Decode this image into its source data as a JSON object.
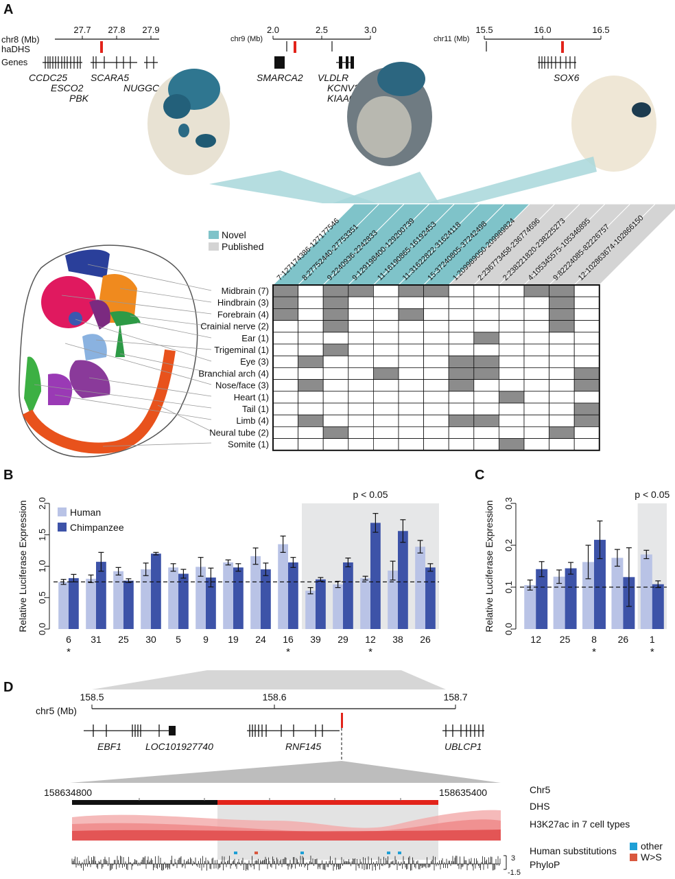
{
  "panel_labels": {
    "a": "A",
    "b": "B",
    "c": "C",
    "d": "D"
  },
  "panel_a": {
    "loci": [
      {
        "chrom": "chr8 (Mb)",
        "ticks": [
          "27.7",
          "27.8",
          "27.9"
        ],
        "track_labels": [
          "haDHS",
          "Genes"
        ],
        "genes": [
          "CCDC25",
          "ESCO2",
          "PBK",
          "SCARA5",
          "NUGGC"
        ]
      },
      {
        "chrom": "chr9 (Mb)",
        "ticks": [
          "2.0",
          "2.5",
          "3.0"
        ],
        "genes": [
          "SMARCA2",
          "VLDLR",
          "KCNV2",
          "KIAA0020"
        ]
      },
      {
        "chrom": "chr11 (Mb)",
        "ticks": [
          "15.5",
          "16.0",
          "16.5"
        ],
        "genes": [
          "SOX6"
        ]
      }
    ],
    "legend": [
      {
        "label": "Novel",
        "color": "#7fc3c9"
      },
      {
        "label": "Published",
        "color": "#d4d4d4"
      }
    ],
    "columns": [
      {
        "label": "7:127174386-127177546",
        "type": "novel"
      },
      {
        "label": "8:27752440-27753351",
        "type": "novel"
      },
      {
        "label": "9:2240936-2242833",
        "type": "novel"
      },
      {
        "label": "9:129198400-129200739",
        "type": "novel"
      },
      {
        "label": "11:16190865-16192453",
        "type": "novel"
      },
      {
        "label": "11:31622822-31624118",
        "type": "novel"
      },
      {
        "label": "15:37240805-37242498",
        "type": "novel"
      },
      {
        "label": "1:209989050-209989824",
        "type": "published"
      },
      {
        "label": "2:236773458-236774696",
        "type": "published"
      },
      {
        "label": "2:238221820-238225273",
        "type": "published"
      },
      {
        "label": "4:105345575-105346895",
        "type": "published"
      },
      {
        "label": "9:82224085-82226757",
        "type": "published"
      },
      {
        "label": "12:102863674-102866150",
        "type": "published"
      }
    ],
    "rows": [
      {
        "label": "Midbrain (7)",
        "cells": [
          1,
          0,
          1,
          1,
          0,
          1,
          1,
          0,
          0,
          0,
          1,
          1,
          0
        ]
      },
      {
        "label": "Hindbrain (3)",
        "cells": [
          1,
          0,
          1,
          0,
          0,
          0,
          0,
          0,
          0,
          0,
          0,
          1,
          0
        ]
      },
      {
        "label": "Forebrain (4)",
        "cells": [
          1,
          0,
          1,
          0,
          0,
          1,
          0,
          0,
          0,
          0,
          0,
          1,
          0
        ]
      },
      {
        "label": "Crainial nerve (2)",
        "cells": [
          0,
          0,
          1,
          0,
          0,
          0,
          0,
          0,
          0,
          0,
          0,
          1,
          0
        ]
      },
      {
        "label": "Ear (1)",
        "cells": [
          0,
          0,
          0,
          0,
          0,
          0,
          0,
          0,
          1,
          0,
          0,
          0,
          0
        ]
      },
      {
        "label": "Trigeminal (1)",
        "cells": [
          0,
          0,
          1,
          0,
          0,
          0,
          0,
          0,
          0,
          0,
          0,
          0,
          0
        ]
      },
      {
        "label": "Eye (3)",
        "cells": [
          0,
          1,
          0,
          0,
          0,
          0,
          0,
          1,
          1,
          0,
          0,
          0,
          0
        ]
      },
      {
        "label": "Branchial arch (4)",
        "cells": [
          0,
          0,
          0,
          0,
          1,
          0,
          0,
          1,
          1,
          0,
          0,
          0,
          1
        ]
      },
      {
        "label": "Nose/face (3)",
        "cells": [
          0,
          1,
          0,
          0,
          0,
          0,
          0,
          1,
          0,
          0,
          0,
          0,
          1
        ]
      },
      {
        "label": "Heart (1)",
        "cells": [
          0,
          0,
          0,
          0,
          0,
          0,
          0,
          0,
          0,
          1,
          0,
          0,
          0
        ]
      },
      {
        "label": "Tail (1)",
        "cells": [
          0,
          0,
          0,
          0,
          0,
          0,
          0,
          0,
          0,
          0,
          0,
          0,
          1
        ]
      },
      {
        "label": "Limb (4)",
        "cells": [
          0,
          1,
          0,
          0,
          0,
          0,
          0,
          1,
          1,
          0,
          0,
          0,
          1
        ]
      },
      {
        "label": "Neural tube (2)",
        "cells": [
          0,
          0,
          1,
          0,
          0,
          0,
          0,
          0,
          0,
          0,
          0,
          1,
          0
        ]
      },
      {
        "label": "Somite (1)",
        "cells": [
          0,
          0,
          0,
          0,
          0,
          0,
          0,
          0,
          0,
          1,
          0,
          0,
          0
        ]
      }
    ]
  },
  "chart_data": [
    {
      "type": "bar",
      "panel": "B",
      "ylabel": "Relative Luciferase Expression",
      "categories": [
        "6",
        "31",
        "25",
        "30",
        "5",
        "9",
        "19",
        "24",
        "16",
        "39",
        "29",
        "12",
        "38",
        "26"
      ],
      "series": [
        {
          "name": "Human",
          "color": "#b9c3e6",
          "values": [
            0.75,
            0.8,
            0.92,
            0.95,
            0.98,
            0.99,
            1.06,
            1.16,
            1.35,
            0.61,
            0.71,
            0.81,
            0.93,
            1.31
          ],
          "errors": [
            0.04,
            0.06,
            0.06,
            0.1,
            0.06,
            0.15,
            0.04,
            0.13,
            0.13,
            0.05,
            0.05,
            0.03,
            0.15,
            0.1
          ]
        },
        {
          "name": "Chimpanzee",
          "color": "#3d53a8",
          "values": [
            0.81,
            1.07,
            0.77,
            1.2,
            0.88,
            0.82,
            0.98,
            0.95,
            1.06,
            0.79,
            1.06,
            1.69,
            1.56,
            0.98
          ],
          "errors": [
            0.06,
            0.15,
            0.03,
            0.02,
            0.07,
            0.15,
            0.06,
            0.1,
            0.08,
            0.03,
            0.07,
            0.15,
            0.18,
            0.06
          ]
        }
      ],
      "ylim": [
        0,
        2.0
      ],
      "yticks": [
        "0.0",
        "0.5",
        "1.0",
        "1.5",
        "2.0"
      ],
      "baseline": 0.75,
      "significant": [
        "6",
        "16",
        "12"
      ],
      "sig_mark": "*",
      "highlight": {
        "from": "39",
        "to": "26",
        "label": "p < 0.05"
      },
      "legend": "top-left",
      "grid": false
    },
    {
      "type": "bar",
      "panel": "C",
      "ylabel": "Relative Luciferase Expression",
      "categories": [
        "12",
        "25",
        "8",
        "26",
        "1"
      ],
      "series": [
        {
          "name": "Human",
          "color": "#b9c3e6",
          "values": [
            0.105,
            0.125,
            0.16,
            0.17,
            0.178
          ],
          "errors": [
            0.012,
            0.016,
            0.04,
            0.02,
            0.01
          ]
        },
        {
          "name": "Chimpanzee",
          "color": "#3d53a8",
          "values": [
            0.143,
            0.145,
            0.213,
            0.124,
            0.107
          ],
          "errors": [
            0.018,
            0.014,
            0.045,
            0.07,
            0.008
          ]
        }
      ],
      "ylim": [
        0,
        0.3
      ],
      "yticks": [
        "0.0",
        "0.1",
        "0.2",
        "0.3"
      ],
      "baseline": 0.1,
      "significant": [
        "8",
        "1"
      ],
      "sig_mark": "*",
      "highlight": {
        "from": "1",
        "to": "1",
        "label": "p < 0.05"
      },
      "grid": false
    }
  ],
  "panel_d": {
    "chrom": "chr5 (Mb)",
    "ticks": [
      "158.5",
      "158.6",
      "158.7"
    ],
    "genes": [
      "EBF1",
      "LOC101927740",
      "RNF145",
      "UBLCP1"
    ],
    "zoom_start": "158634800",
    "zoom_end": "158635400",
    "tracks": [
      "Chr5",
      "DHS",
      "H3K27ac in 7 cell types",
      "Human substitutions",
      "PhyloP"
    ],
    "substitution_legend": [
      {
        "label": "other",
        "color": "#1e9fd6"
      },
      {
        "label": "W>S",
        "color": "#d9573e"
      }
    ],
    "phylop_scale": [
      "3",
      "-1.5"
    ]
  }
}
